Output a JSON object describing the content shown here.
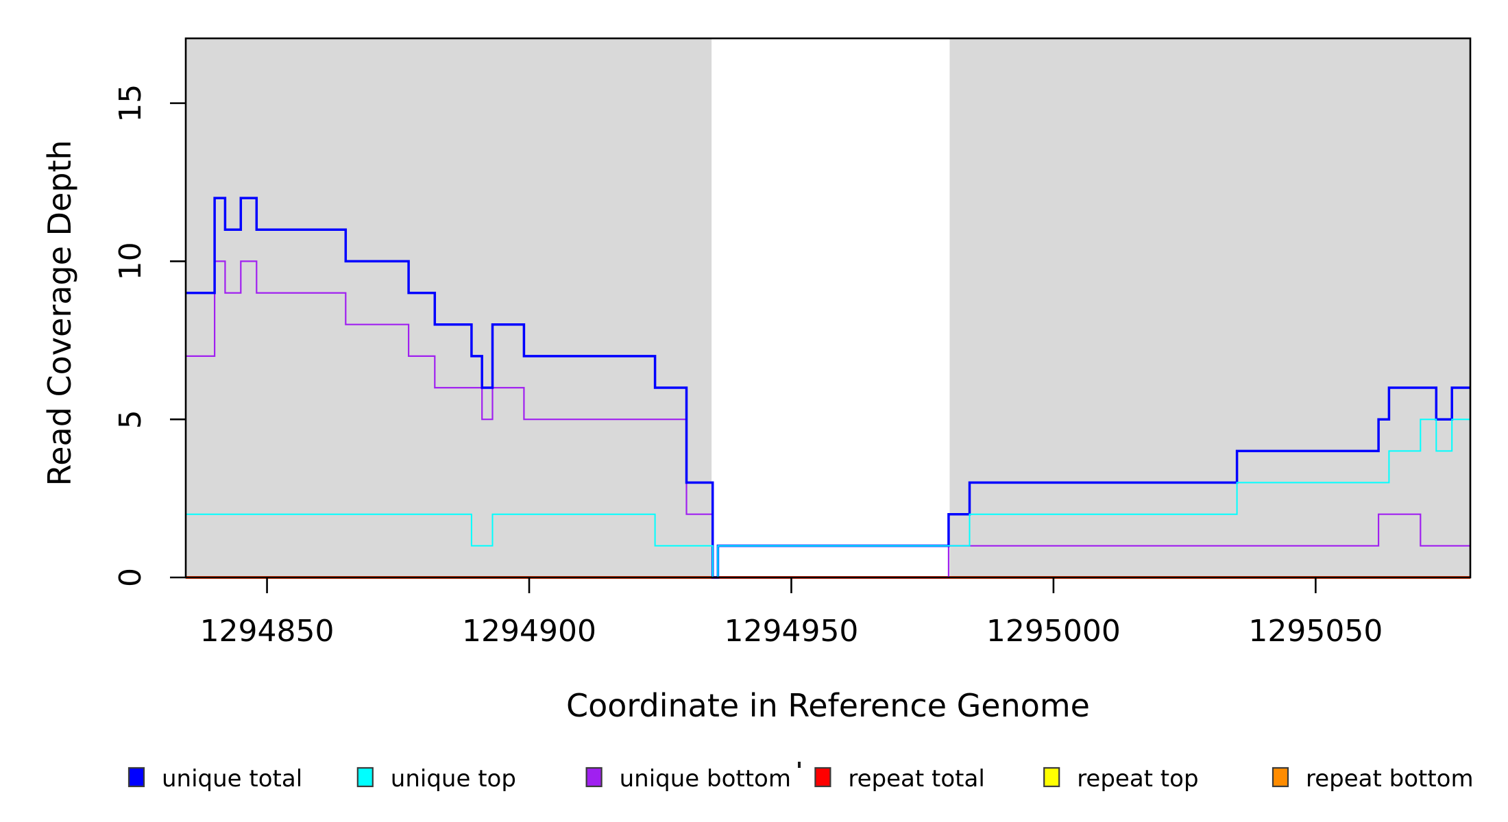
{
  "figure": {
    "background_color": "#FFFFFF",
    "plot_region_fill": "#D9D9D9",
    "frame_color": "#000000"
  },
  "chart_data": {
    "type": "line",
    "subtype": "step-after-coverage",
    "title": "",
    "xlabel": "Coordinate in Reference Genome",
    "ylabel": "Read Coverage Depth",
    "xlim": [
      1294834.5,
      1295079.5
    ],
    "ylim": [
      0,
      17.05
    ],
    "xticks": [
      1294850,
      1294900,
      1294950,
      1295000,
      1295050
    ],
    "yticks": [
      0,
      5,
      10,
      15
    ],
    "grid": false,
    "legend_position": "bottom",
    "background_regions": [
      {
        "name": "unique-region-left",
        "x0": 1294834.5,
        "x1": 1294934.8,
        "color": "#D9D9D9"
      },
      {
        "name": "repeat-region-gap",
        "x0": 1294934.8,
        "x1": 1294980.2,
        "color": "#FFFFFF"
      },
      {
        "name": "unique-region-right",
        "x0": 1294980.2,
        "x1": 1295079.5,
        "color": "#D9D9D9"
      }
    ],
    "series": [
      {
        "name": "repeat total",
        "color": "#FF0000",
        "width": 4,
        "steps": [
          [
            1294834.5,
            0
          ],
          [
            1295079.5,
            0
          ]
        ]
      },
      {
        "name": "repeat top",
        "color": "#FFFF00",
        "width": 3,
        "steps": [
          [
            1294834.5,
            0
          ],
          [
            1295079.5,
            0
          ]
        ]
      },
      {
        "name": "repeat bottom",
        "color": "#FF8C00",
        "width": 2.4,
        "steps": [
          [
            1294834.5,
            0
          ],
          [
            1295079.5,
            0
          ]
        ]
      },
      {
        "name": "unique bottom",
        "color": "#A020F0",
        "width": 2.2,
        "steps": [
          [
            1294834.5,
            7
          ],
          [
            1294840,
            10
          ],
          [
            1294842,
            9
          ],
          [
            1294845,
            10
          ],
          [
            1294848,
            9
          ],
          [
            1294865,
            8
          ],
          [
            1294877,
            7
          ],
          [
            1294882,
            6
          ],
          [
            1294891,
            5
          ],
          [
            1294893,
            6
          ],
          [
            1294899,
            5
          ],
          [
            1294930,
            2
          ],
          [
            1294935,
            0
          ],
          [
            1294980,
            1
          ],
          [
            1295062,
            2
          ],
          [
            1295070,
            1
          ],
          [
            1295079.5,
            1
          ]
        ]
      },
      {
        "name": "unique total",
        "color": "#0000FF",
        "width": 3.5,
        "steps": [
          [
            1294834.5,
            9
          ],
          [
            1294840,
            12
          ],
          [
            1294842,
            11
          ],
          [
            1294845,
            12
          ],
          [
            1294848,
            11
          ],
          [
            1294865,
            10
          ],
          [
            1294877,
            9
          ],
          [
            1294882,
            8
          ],
          [
            1294889,
            7
          ],
          [
            1294891,
            6
          ],
          [
            1294893,
            8
          ],
          [
            1294899,
            7
          ],
          [
            1294924,
            6
          ],
          [
            1294930,
            3
          ],
          [
            1294935,
            0
          ],
          [
            1294936,
            1
          ],
          [
            1294980,
            2
          ],
          [
            1294984,
            3
          ],
          [
            1295035,
            4
          ],
          [
            1295062,
            5
          ],
          [
            1295064,
            6
          ],
          [
            1295073,
            5
          ],
          [
            1295076,
            6
          ],
          [
            1295079.5,
            6
          ]
        ]
      },
      {
        "name": "unique top",
        "color": "#00FFFF",
        "width": 2,
        "steps": [
          [
            1294834.5,
            2
          ],
          [
            1294889,
            1
          ],
          [
            1294893,
            2
          ],
          [
            1294924,
            1
          ],
          [
            1294935,
            0
          ],
          [
            1294936,
            1
          ],
          [
            1294984,
            2
          ],
          [
            1295035,
            3
          ],
          [
            1295064,
            4
          ],
          [
            1295070,
            5
          ],
          [
            1295073,
            4
          ],
          [
            1295076,
            5
          ],
          [
            1295079.5,
            5
          ]
        ]
      }
    ],
    "legend": {
      "items": [
        {
          "label": "unique total",
          "color": "#0000FF"
        },
        {
          "label": "unique top",
          "color": "#00FFFF"
        },
        {
          "label": "unique bottom",
          "color": "#A020F0"
        },
        {
          "label": "repeat total",
          "color": "#FF0000"
        },
        {
          "label": "repeat top",
          "color": "#FFFF00"
        },
        {
          "label": "repeat bottom",
          "color": "#FF8C00"
        }
      ]
    }
  }
}
